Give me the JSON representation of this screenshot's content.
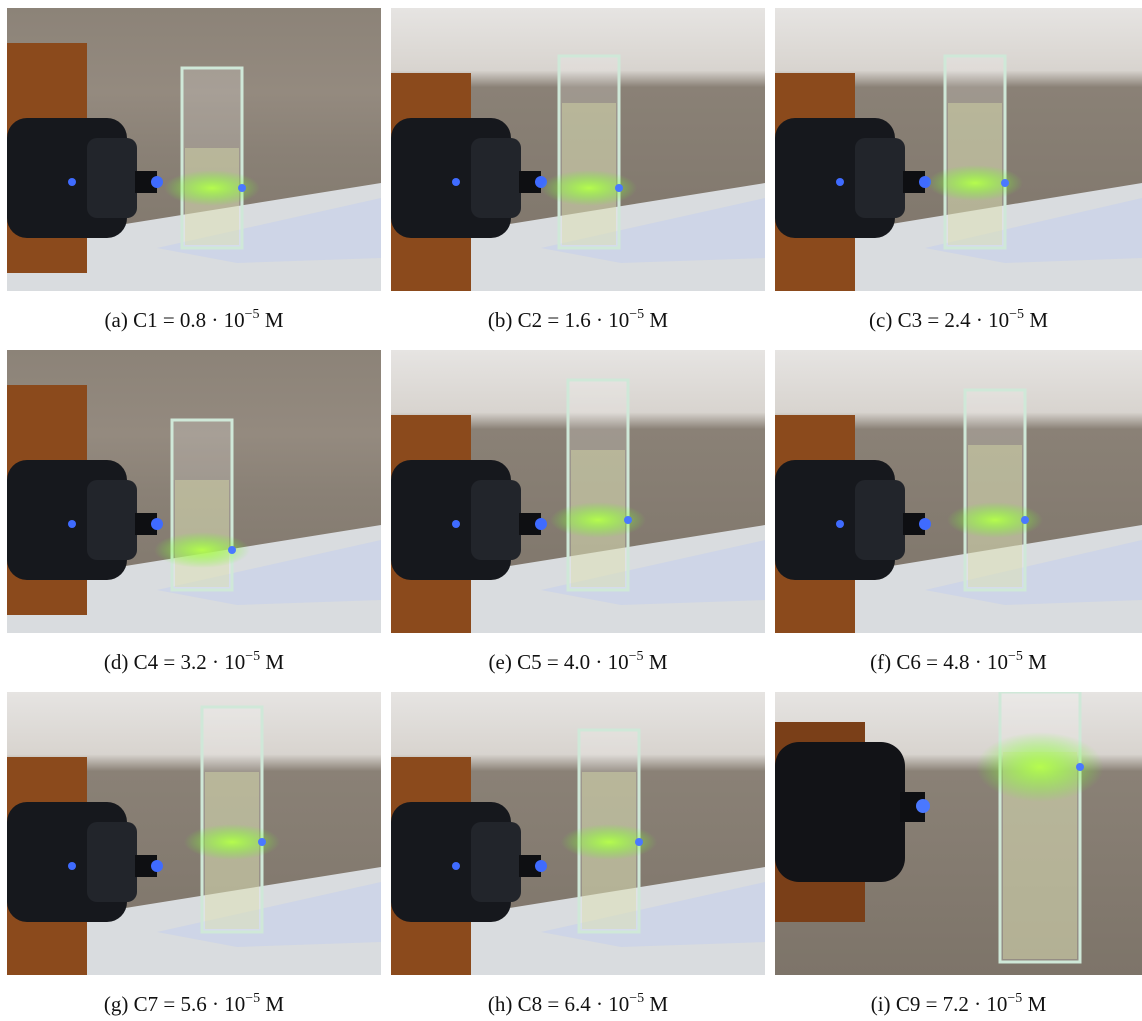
{
  "panels": [
    {
      "label": "(a)",
      "text": "C1 = 0.8 · 10",
      "exponent": "−5",
      "unit": "M"
    },
    {
      "label": "(b)",
      "text": "C2 = 1.6 · 10",
      "exponent": "−5",
      "unit": "M"
    },
    {
      "label": "(c)",
      "text": "C3 = 2.4 · 10",
      "exponent": "−5",
      "unit": "M"
    },
    {
      "label": "(d)",
      "text": "C4 = 3.2 · 10",
      "exponent": "−5",
      "unit": "M"
    },
    {
      "label": "(e)",
      "text": "C5 = 4.0 · 10",
      "exponent": "−5",
      "unit": "M"
    },
    {
      "label": "(f)",
      "text": "C6 = 4.8 · 10",
      "exponent": "−5",
      "unit": "M"
    },
    {
      "label": "(g)",
      "text": "C7 = 5.6 · 10",
      "exponent": "−5",
      "unit": "M"
    },
    {
      "label": "(h)",
      "text": "C8 = 6.4 · 10",
      "exponent": "−5",
      "unit": "M"
    },
    {
      "label": "(i)",
      "text": "C9 = 7.2 · 10",
      "exponent": "−5",
      "unit": "M"
    }
  ]
}
